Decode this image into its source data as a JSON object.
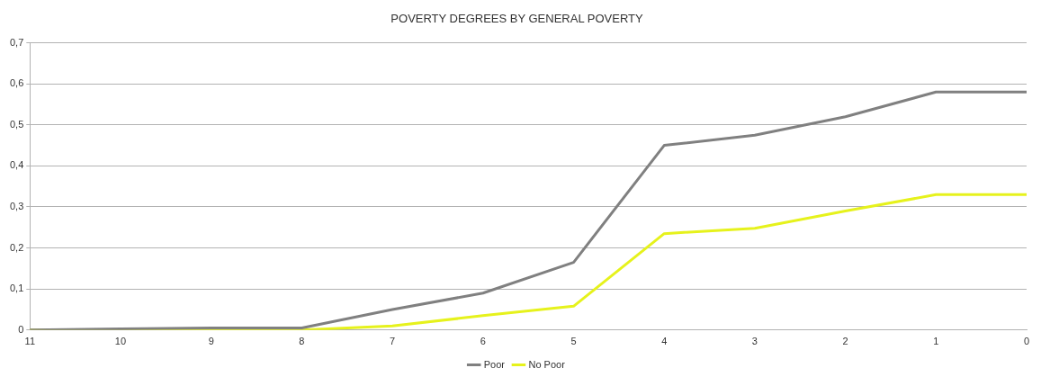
{
  "chart_data": {
    "type": "line",
    "title": "POVERTY DEGREES BY GENERAL POVERTY",
    "categories": [
      "11",
      "10",
      "9",
      "8",
      "7",
      "6",
      "5",
      "4",
      "3",
      "2",
      "1",
      "0"
    ],
    "series": [
      {
        "name": "Poor",
        "color": "#808080",
        "values": [
          0,
          0.003,
          0.005,
          0.005,
          0.05,
          0.09,
          0.165,
          0.45,
          0.475,
          0.52,
          0.58,
          0.58
        ]
      },
      {
        "name": "No Poor",
        "color": "#e6f21c",
        "values": [
          0,
          0,
          0,
          0,
          0.01,
          0.035,
          0.058,
          0.235,
          0.248,
          0.29,
          0.33,
          0.33
        ]
      }
    ],
    "ylim": [
      0,
      0.7
    ],
    "yticks": [
      {
        "value": 0,
        "label": "0"
      },
      {
        "value": 0.1,
        "label": "0,1"
      },
      {
        "value": 0.2,
        "label": "0,2"
      },
      {
        "value": 0.3,
        "label": "0,3"
      },
      {
        "value": 0.4,
        "label": "0,4"
      },
      {
        "value": 0.5,
        "label": "0,5"
      },
      {
        "value": 0.6,
        "label": "0,6"
      },
      {
        "value": 0.7,
        "label": "0,7"
      }
    ],
    "grid": "y",
    "legend": "bottom",
    "marker": "none",
    "line_style": "solid"
  }
}
